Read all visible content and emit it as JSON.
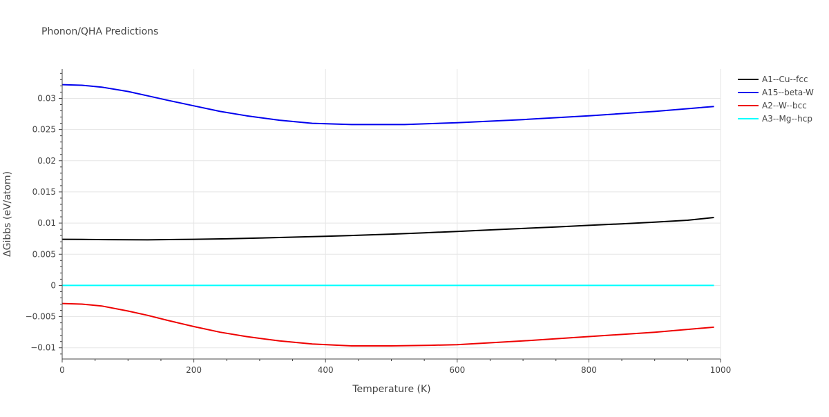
{
  "chart_data": {
    "type": "line",
    "title": "Phonon/QHA Predictions",
    "xlabel": "Temperature (K)",
    "ylabel": "ΔGibbs (eV/atom)",
    "xlim": [
      0,
      1000
    ],
    "ylim": [
      -0.0118,
      0.0347
    ],
    "x_ticks": [
      0,
      200,
      400,
      600,
      800,
      1000
    ],
    "x_tick_labels": [
      "0",
      "200",
      "400",
      "600",
      "800",
      "1000"
    ],
    "y_ticks": [
      -0.01,
      -0.005,
      0,
      0.005,
      0.01,
      0.015,
      0.02,
      0.025,
      0.03
    ],
    "y_tick_labels": [
      "−0.01",
      "−0.005",
      "0",
      "0.005",
      "0.01",
      "0.015",
      "0.02",
      "0.025",
      "0.03"
    ],
    "grid": true,
    "legend_position": "top-right",
    "series": [
      {
        "name": "A1--Cu--fcc",
        "color": "#000000",
        "x": [
          0,
          30,
          70,
          130,
          200,
          250,
          300,
          350,
          400,
          450,
          500,
          550,
          600,
          650,
          700,
          750,
          800,
          850,
          900,
          950,
          990
        ],
        "y": [
          0.0074,
          0.00738,
          0.00734,
          0.00731,
          0.0074,
          0.00748,
          0.0076,
          0.00774,
          0.00788,
          0.00804,
          0.00823,
          0.00844,
          0.00866,
          0.0089,
          0.00914,
          0.00938,
          0.00963,
          0.00988,
          0.01015,
          0.01045,
          0.0109
        ]
      },
      {
        "name": "A15--beta-W",
        "color": "#0000ee",
        "x": [
          0,
          30,
          60,
          100,
          130,
          160,
          200,
          240,
          280,
          330,
          380,
          440,
          520,
          600,
          700,
          800,
          900,
          990
        ],
        "y": [
          0.0322,
          0.0321,
          0.0318,
          0.0311,
          0.0304,
          0.0297,
          0.0288,
          0.0279,
          0.0272,
          0.0265,
          0.026,
          0.0258,
          0.0258,
          0.0261,
          0.0266,
          0.0272,
          0.0279,
          0.0287
        ]
      },
      {
        "name": "A2--W--bcc",
        "color": "#ee0000",
        "x": [
          0,
          30,
          60,
          100,
          130,
          160,
          200,
          240,
          280,
          330,
          380,
          440,
          500,
          560,
          600,
          700,
          800,
          900,
          990
        ],
        "y": [
          -0.0029,
          -0.003,
          -0.0033,
          -0.0041,
          -0.0048,
          -0.0056,
          -0.0066,
          -0.0075,
          -0.0082,
          -0.0089,
          -0.0094,
          -0.0097,
          -0.0097,
          -0.0096,
          -0.0095,
          -0.0089,
          -0.0082,
          -0.0075,
          -0.0067
        ]
      },
      {
        "name": "A3--Mg--hcp",
        "color": "#00ffff",
        "x": [
          0,
          990
        ],
        "y": [
          0,
          0
        ]
      }
    ]
  }
}
